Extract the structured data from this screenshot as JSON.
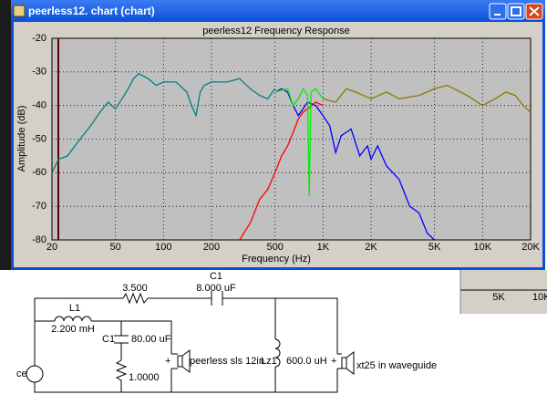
{
  "window": {
    "title": "peerless12. chart (chart)"
  },
  "chart_data": {
    "type": "line",
    "title": "peerless12 Frequency Response",
    "xlabel": "Frequency (Hz)",
    "ylabel": "Amplitude (dB)",
    "xscale": "log",
    "grid": true,
    "xlim": [
      20,
      20000
    ],
    "ylim": [
      -80,
      -20
    ],
    "xticks": [
      20,
      50,
      100,
      200,
      500,
      {
        "value": 1000,
        "label": "1K"
      },
      {
        "value": 2000,
        "label": "2K"
      },
      {
        "value": 5000,
        "label": "5K"
      },
      {
        "value": 10000,
        "label": "10K"
      },
      {
        "value": 20000,
        "label": "20K"
      }
    ],
    "yticks": [
      -20,
      -30,
      -40,
      -50,
      -60,
      -70,
      -80
    ],
    "series": [
      {
        "color": "#008080",
        "x": [
          20,
          22,
          25,
          30,
          35,
          40,
          45,
          50,
          55,
          60,
          65,
          70,
          80,
          90,
          100,
          120,
          140,
          150,
          160,
          170,
          180,
          200,
          250,
          300,
          350,
          400,
          450,
          500
        ],
        "values": [
          -60,
          -56,
          -55,
          -50,
          -46,
          -42,
          -39,
          -41,
          -38,
          -35,
          -32,
          -30.5,
          -32,
          -34,
          -33,
          -33,
          -36,
          -40,
          -43,
          -36,
          -34,
          -33,
          -33,
          -32,
          -35,
          -37,
          -38,
          -35
        ]
      },
      {
        "color": "#0000ff",
        "x": [
          500,
          550,
          600,
          650,
          700,
          800,
          900,
          1000,
          1100,
          1200,
          1300,
          1500,
          1700,
          1900,
          2000,
          2200,
          2500,
          3000,
          3500,
          4000,
          4500,
          5000
        ],
        "values": [
          -36,
          -35,
          -36,
          -40,
          -43,
          -39,
          -40,
          -43,
          -46,
          -54,
          -49,
          -47,
          -55,
          -52,
          -56,
          -52,
          -58,
          -62,
          -70,
          -72,
          -78,
          -80
        ]
      },
      {
        "color": "#ff0000",
        "x": [
          300,
          350,
          400,
          450,
          500,
          550,
          600,
          650,
          700,
          750,
          800,
          850,
          900,
          1000
        ],
        "values": [
          -80,
          -75,
          -68,
          -65,
          -60,
          -55,
          -52,
          -48,
          -44,
          -42,
          -41,
          -40,
          -39,
          -40
        ]
      },
      {
        "color": "#00ee00",
        "x": [
          500,
          600,
          650,
          700,
          750,
          800,
          820,
          840,
          900,
          1000
        ],
        "values": [
          -36,
          -35,
          -40,
          -38,
          -35,
          -37,
          -67,
          -36,
          -35,
          -38
        ]
      },
      {
        "color": "#8a7a00",
        "x": [
          1000,
          1200,
          1400,
          1600,
          2000,
          2500,
          3000,
          4000,
          5000,
          6000,
          8000,
          10000,
          12000,
          14000,
          16000,
          18000,
          20000
        ],
        "values": [
          -38,
          -39,
          -35,
          -36,
          -38,
          -36,
          -38,
          -37,
          -35,
          -34,
          -37,
          -40,
          -38,
          -36,
          -37,
          -40,
          -42
        ]
      }
    ]
  },
  "schematic": {
    "labels": [
      "3.500",
      "C1",
      "8.000 uF",
      "L1",
      "2.200 mH",
      "C1",
      "80.00 uF",
      "1.0000",
      "+",
      "peerless sls 12in",
      "Lz1",
      "600.0 uH",
      "+",
      "xt25 in waveguide",
      "ce"
    ]
  },
  "background_window": {
    "axis_labels": [
      "5K",
      "10K"
    ]
  }
}
